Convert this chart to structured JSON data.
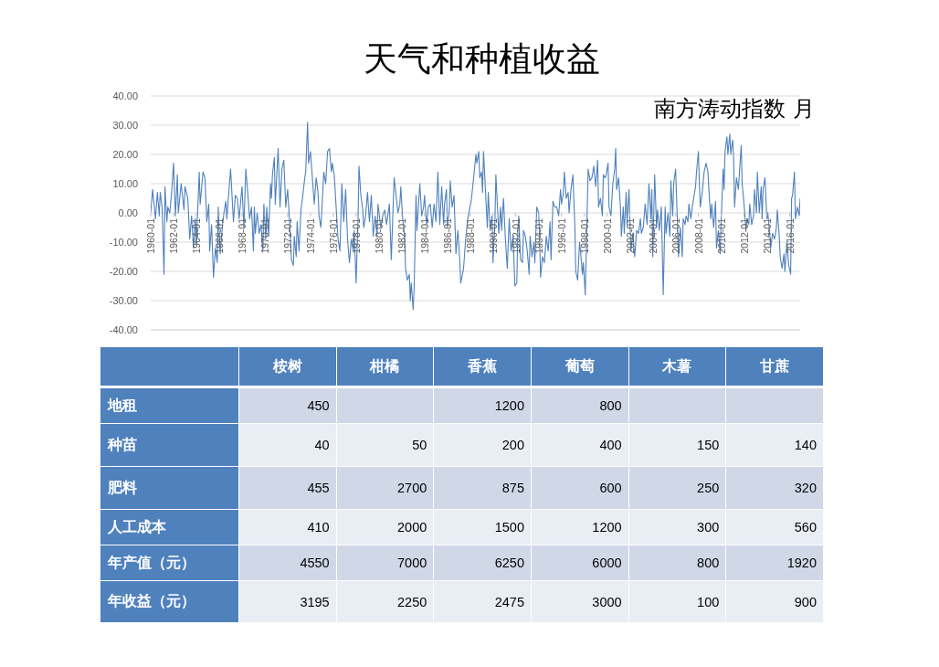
{
  "chart_data": [
    {
      "type": "line",
      "title": "天气和种植收益",
      "subtitle": "南方涛动指数 月",
      "color": "#4f81bd",
      "x": [
        "1960-01",
        "1960-03",
        "1960-06",
        "1960-08",
        "1960-10",
        "1960-11",
        "1961-01",
        "1961-03",
        "1961-04",
        "1961-06",
        "1961-07",
        "1961-09",
        "1961-11",
        "1962-01",
        "1962-03",
        "1962-05",
        "1962-06",
        "1962-09",
        "1962-12",
        "1963-01",
        "1963-04",
        "1963-06",
        "1963-08",
        "1963-10",
        "1963-12",
        "1964-01",
        "1964-04",
        "1964-05",
        "1964-08",
        "1964-10",
        "1964-12",
        "1965-02",
        "1965-03",
        "1965-05",
        "1965-07",
        "1965-09",
        "1965-11",
        "1965-12",
        "1966-02",
        "1966-04",
        "1966-06",
        "1966-08",
        "1966-09",
        "1967-01",
        "1967-04",
        "1967-06",
        "1967-08",
        "1967-10",
        "1968-01",
        "1968-03",
        "1968-05",
        "1968-07",
        "1968-09",
        "1968-11",
        "1969-01",
        "1969-02",
        "1969-03",
        "1969-05",
        "1969-07",
        "1969-09",
        "1969-11",
        "1969-12",
        "1970-02",
        "1970-03",
        "1970-05",
        "1970-07",
        "1970-08",
        "1970-09",
        "1970-11",
        "1970-12",
        "1971-03",
        "1971-05",
        "1971-07",
        "1971-09",
        "1971-11",
        "1972-01",
        "1972-03",
        "1972-05",
        "1972-07",
        "1972-08",
        "1972-10",
        "1972-11",
        "1973-01",
        "1973-03",
        "1973-05",
        "1973-07",
        "1973-08",
        "1973-10",
        "1973-11",
        "1974-01",
        "1974-03",
        "1974-05",
        "1974-07",
        "1974-09",
        "1974-10",
        "1974-12",
        "1975-03",
        "1975-05",
        "1975-07",
        "1975-09",
        "1975-11",
        "1975-12",
        "1976-02",
        "1976-04",
        "1976-06",
        "1976-08",
        "1976-10",
        "1976-12",
        "1977-02",
        "1977-04",
        "1977-06",
        "1977-08",
        "1977-10",
        "1977-11",
        "1978-01",
        "1978-03",
        "1978-04",
        "1978-06",
        "1978-08",
        "1978-09",
        "1978-11",
        "1979-01",
        "1979-03",
        "1979-05",
        "1979-07",
        "1979-09",
        "1979-11",
        "1979-12",
        "1980-03",
        "1980-05",
        "1980-07",
        "1980-09",
        "1980-12",
        "1981-02",
        "1981-05",
        "1981-07",
        "1981-09",
        "1981-11",
        "1981-12",
        "1982-02",
        "1982-04",
        "1982-05",
        "1982-07",
        "1982-09",
        "1982-10",
        "1982-11",
        "1983-01",
        "1983-02",
        "1983-04",
        "1983-05",
        "1983-08",
        "1983-10",
        "1983-12",
        "1984-01",
        "1984-03",
        "1984-05",
        "1984-07",
        "1984-09",
        "1984-11",
        "1985-01",
        "1985-03",
        "1985-05",
        "1985-07",
        "1985-09",
        "1985-10",
        "1985-12",
        "1986-01",
        "1986-03",
        "1986-04",
        "1986-06",
        "1986-08",
        "1986-10",
        "1986-12",
        "1987-02",
        "1987-03",
        "1987-06",
        "1987-08",
        "1987-10",
        "1987-11",
        "1988-02",
        "1988-04",
        "1988-07",
        "1988-08",
        "1988-10",
        "1988-11",
        "1989-01",
        "1989-02",
        "1989-03",
        "1989-05",
        "1989-07",
        "1989-08",
        "1989-10",
        "1989-12",
        "1990-01",
        "1990-03",
        "1990-04",
        "1990-06",
        "1990-07",
        "1990-09",
        "1990-10",
        "1990-12",
        "1991-02",
        "1991-04",
        "1991-06",
        "1991-08",
        "1991-10",
        "1991-12",
        "1992-02",
        "1992-03",
        "1992-04",
        "1992-06",
        "1992-08",
        "1992-09",
        "1992-11",
        "1993-01",
        "1993-03",
        "1993-04",
        "1993-06",
        "1993-08",
        "1993-09",
        "1993-11",
        "1994-01",
        "1994-02",
        "1994-03",
        "1994-05",
        "1994-07",
        "1994-09",
        "1994-11",
        "1995-01",
        "1995-02",
        "1995-04",
        "1995-06",
        "1995-08",
        "1995-10",
        "1995-12",
        "1996-01",
        "1996-03",
        "1996-04",
        "1996-06",
        "1996-08",
        "1996-09",
        "1996-11",
        "1997-01",
        "1997-03",
        "1997-04",
        "1997-06",
        "1997-08",
        "1997-09",
        "1997-11",
        "1997-12",
        "1998-02",
        "1998-03",
        "1998-05",
        "1998-07",
        "1998-09",
        "1998-11",
        "1999-01",
        "1999-03",
        "1999-04",
        "1999-06",
        "1999-08",
        "1999-09",
        "1999-11",
        "1999-12",
        "2000-02",
        "2000-03",
        "2000-05",
        "2000-07",
        "2000-09",
        "2000-10",
        "2000-11",
        "2001-01",
        "2001-03",
        "2001-04",
        "2001-06",
        "2001-07",
        "2001-09",
        "2001-10",
        "2001-12",
        "2002-02",
        "2002-04",
        "2002-06",
        "2002-08",
        "2002-10",
        "2002-12",
        "2003-01",
        "2003-03",
        "2003-05",
        "2003-07",
        "2003-09",
        "2003-11",
        "2003-12",
        "2004-01",
        "2004-03",
        "2004-05",
        "2004-06",
        "2004-08",
        "2004-10",
        "2004-12",
        "2005-02",
        "2005-03",
        "2005-05",
        "2005-07",
        "2005-08",
        "2005-10",
        "2005-11",
        "2006-01",
        "2006-03",
        "2006-04",
        "2006-06",
        "2006-08",
        "2006-09",
        "2006-11",
        "2006-12",
        "2007-02",
        "2007-03",
        "2007-05",
        "2007-07",
        "2007-08",
        "2007-10",
        "2007-11",
        "2008-01",
        "2008-02",
        "2008-03",
        "2008-05",
        "2008-07",
        "2008-09",
        "2008-11",
        "2008-12",
        "2009-02",
        "2009-03",
        "2009-05",
        "2009-07",
        "2009-08",
        "2009-10",
        "2009-12",
        "2010-01",
        "2010-03",
        "2010-04",
        "2010-05",
        "2010-07",
        "2010-08",
        "2010-10",
        "2010-11",
        "2011-01",
        "2011-02",
        "2011-03",
        "2011-05",
        "2011-07",
        "2011-08",
        "2011-10",
        "2011-11",
        "2012-01",
        "2012-03",
        "2012-04",
        "2012-06",
        "2012-07",
        "2012-09",
        "2012-11",
        "2012-12",
        "2013-02",
        "2013-03",
        "2013-05",
        "2013-07",
        "2013-08",
        "2013-09",
        "2013-11",
        "2014-01",
        "2014-02",
        "2014-04",
        "2014-05",
        "2014-07",
        "2014-09",
        "2014-11",
        "2014-12",
        "2015-02",
        "2015-03",
        "2015-05",
        "2015-07",
        "2015-08",
        "2015-10",
        "2015-12",
        "2016-02",
        "2016-03",
        "2016-04",
        "2016-06",
        "2016-07",
        "2016-09",
        "2016-11",
        "2016-12"
      ],
      "values": [
        0,
        8,
        -2,
        7,
        -1,
        7,
        2,
        -21,
        9,
        -3,
        2,
        0,
        7,
        17,
        -1,
        13,
        0,
        10,
        1,
        9,
        5,
        -9,
        -1,
        -12,
        -2,
        -11,
        14,
        3,
        14,
        12,
        -3,
        3,
        -13,
        -4,
        -22,
        -12,
        -17,
        2,
        -14,
        -6,
        0,
        4,
        -2,
        15,
        -3,
        6,
        5,
        -2,
        9,
        -5,
        15,
        7,
        -2,
        2,
        -13,
        2,
        -7,
        0,
        -7,
        -4,
        -13,
        3,
        -9,
        2,
        -8,
        10,
        5,
        13,
        19,
        3,
        22,
        2,
        15,
        18,
        2,
        8,
        -3,
        -16,
        -18,
        -8,
        -15,
        -3,
        -13,
        1,
        6,
        12,
        14,
        31,
        17,
        21,
        12,
        3,
        12,
        7,
        -1,
        -5,
        14,
        10,
        21,
        22,
        14,
        17,
        13,
        2,
        -9,
        -13,
        10,
        -3,
        8,
        -9,
        -17,
        -9,
        -13,
        -6,
        -24,
        -3,
        16,
        6,
        1,
        -5,
        -1,
        7,
        -3,
        6,
        -8,
        -1,
        -8,
        3,
        -5,
        -1,
        1,
        -4,
        3,
        -16,
        12,
        6,
        0,
        3,
        9,
        -2,
        -8,
        -19,
        -23,
        -21,
        -30,
        -24,
        -33,
        -26,
        6,
        -6,
        10,
        -1,
        2,
        6,
        -4,
        2,
        3,
        -5,
        3,
        -3,
        14,
        -4,
        9,
        -4,
        3,
        8,
        -5,
        1,
        11,
        2,
        6,
        -14,
        -6,
        -16,
        -24,
        -19,
        -10,
        -3,
        -1,
        4,
        10,
        20,
        17,
        21,
        12,
        14,
        7,
        21,
        8,
        -5,
        7,
        -6,
        -1,
        -17,
        -3,
        13,
        0,
        -7,
        2,
        -6,
        5,
        -9,
        -19,
        -2,
        -13,
        -8,
        -25,
        -24,
        -7,
        -1,
        -16,
        -17,
        -6,
        -8,
        -13,
        -21,
        -8,
        -15,
        -10,
        -17,
        2,
        0,
        -8,
        -22,
        -15,
        -17,
        -8,
        -13,
        -3,
        -16,
        4,
        2,
        2,
        -1,
        8,
        3,
        7,
        14,
        5,
        7,
        0,
        8,
        13,
        -4,
        -20,
        -23,
        -10,
        -13,
        -21,
        -17,
        -28,
        -14,
        15,
        11,
        12,
        16,
        9,
        18,
        2,
        5,
        -1,
        13,
        12,
        13,
        17,
        2,
        -1,
        10,
        15,
        22,
        8,
        12,
        2,
        -8,
        2,
        -7,
        7,
        -4,
        8,
        -13,
        -7,
        -15,
        -6,
        -7,
        -2,
        -7,
        -5,
        3,
        -4,
        10,
        -2,
        8,
        -15,
        13,
        -5,
        1,
        -6,
        2,
        -28,
        2,
        -7,
        0,
        -8,
        11,
        -1,
        10,
        15,
        -4,
        -15,
        -5,
        -15,
        -2,
        -4,
        -1,
        -3,
        3,
        -2,
        3,
        5,
        9,
        14,
        21,
        10,
        2,
        7,
        14,
        17,
        14,
        8,
        -2,
        3,
        -5,
        4,
        -12,
        -6,
        -14,
        -2,
        15,
        8,
        21,
        26,
        20,
        27,
        20,
        25,
        19,
        2,
        12,
        8,
        13,
        23,
        10,
        3,
        -6,
        -2,
        -4,
        3,
        -4,
        -1,
        8,
        0,
        14,
        0,
        9,
        -2,
        8,
        12,
        -2,
        0,
        -7,
        -12,
        -7,
        -9,
        -5,
        1,
        -8,
        -15,
        -19,
        -14,
        -20,
        -10,
        -18,
        -21,
        5,
        6,
        14,
        -2,
        2,
        -1,
        5
      ],
      "xlim": [
        "1960-01",
        "2016-12"
      ],
      "xticks": [
        "1960-01",
        "1962-01",
        "1964-01",
        "1966-01",
        "1968-01",
        "1970-01",
        "1972-01",
        "1974-01",
        "1976-01",
        "1978-01",
        "1980-01",
        "1982-01",
        "1984-01",
        "1986-01",
        "1988-01",
        "1990-01",
        "1992-01",
        "1994-01",
        "1996-01",
        "1998-01",
        "2000-01",
        "2002-01",
        "2004-01",
        "2006-01",
        "2008-01",
        "2010-01",
        "2012-01",
        "2014-01",
        "2016-01"
      ],
      "ylim": [
        -40,
        40
      ],
      "yticks": [
        {
          "value": -40,
          "label": "-40.00"
        },
        {
          "value": -30,
          "label": "-30.00"
        },
        {
          "value": -20,
          "label": "-20.00"
        },
        {
          "value": -10,
          "label": "-10.00"
        },
        {
          "value": 0,
          "label": "0.00"
        },
        {
          "value": 10,
          "label": "10.00"
        },
        {
          "value": 20,
          "label": "20.00"
        },
        {
          "value": 30,
          "label": "30.00"
        },
        {
          "value": 40,
          "label": "40.00"
        }
      ],
      "grid": "y"
    },
    {
      "type": "heatmap",
      "categories": [
        "桉树",
        "柑橘",
        "香蕉",
        "葡萄",
        "木薯",
        "甘蔗"
      ],
      "y_categories": [
        "地租",
        "种苗",
        "肥料",
        "人工成本",
        "年产值（元）",
        "年收益（元）"
      ],
      "cells": [
        [
          450,
          null,
          1200,
          800,
          null,
          null
        ],
        [
          40,
          50,
          200,
          400,
          150,
          140
        ],
        [
          455,
          2700,
          875,
          600,
          250,
          320
        ],
        [
          410,
          2000,
          1500,
          1200,
          300,
          560
        ],
        [
          4550,
          7000,
          6250,
          6000,
          800,
          1920
        ],
        [
          3195,
          2250,
          2475,
          3000,
          100,
          900
        ]
      ],
      "data_labels": true
    }
  ]
}
